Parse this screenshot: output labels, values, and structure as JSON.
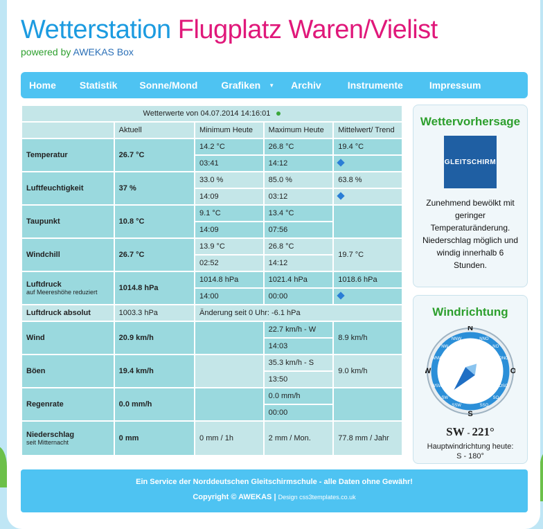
{
  "site": {
    "title_part1": "Wetterstation",
    "title_part2": "Flugplatz Waren/Vielist",
    "powered_prefix": "powered by",
    "powered_brand": "AWEKAS Box"
  },
  "nav": {
    "items": [
      "Home",
      "Statistik",
      "Sonne/Mond",
      "Grafiken",
      "Archiv",
      "Instrumente",
      "Impressum"
    ],
    "dropdown_arrow": "▼"
  },
  "table": {
    "header": "Wetterwerte von 04.07.2014 14:16:01",
    "columns": [
      "Aktuell",
      "Minimum Heute",
      "Maximum Heute",
      "Mittelwert/ Trend"
    ],
    "temperatur": {
      "label": "Temperatur",
      "value": "26.7 °C",
      "min": "14.2 °C",
      "min_time": "03:41",
      "max": "26.8 °C",
      "max_time": "14:12",
      "avg": "19.4 °C"
    },
    "feuchte": {
      "label": "Luftfeuchtigkeit",
      "value": "37 %",
      "min": "33.0 %",
      "min_time": "14:09",
      "max": "85.0 %",
      "max_time": "03:12",
      "avg": "63.8 %"
    },
    "taupunkt": {
      "label": "Taupunkt",
      "value": "10.8 °C",
      "min": "9.1 °C",
      "min_time": "14:09",
      "max": "13.4 °C",
      "max_time": "07:56"
    },
    "windchill": {
      "label": "Windchill",
      "value": "26.7 °C",
      "min": "13.9 °C",
      "min_time": "02:52",
      "max": "26.8 °C",
      "max_time": "14:12",
      "avg": "19.7 °C"
    },
    "luftdruck": {
      "label": "Luftdruck",
      "sublabel": "auf Meereshöhe reduziert",
      "value": "1014.8 hPa",
      "min": "1014.8 hPa",
      "min_time": "14:00",
      "max": "1021.4 hPa",
      "max_time": "00:00",
      "avg": "1018.6 hPa"
    },
    "luftdruck_abs": {
      "label": "Luftdruck absolut",
      "value": "1003.3 hPa",
      "change": "Änderung seit 0 Uhr: -6.1 hPa"
    },
    "wind": {
      "label": "Wind",
      "value": "20.9 km/h",
      "max": "22.7 km/h - W",
      "max_time": "14:03",
      "avg": "8.9 km/h"
    },
    "boeen": {
      "label": "Böen",
      "value": "19.4 km/h",
      "max": "35.3 km/h - S",
      "max_time": "13:50",
      "avg": "9.0 km/h"
    },
    "regenrate": {
      "label": "Regenrate",
      "value": "0.0 mm/h",
      "max": "0.0 mm/h",
      "max_time": "00:00"
    },
    "niederschlag": {
      "label": "Niederschlag",
      "sublabel": "seit Mitternacht",
      "value": "0 mm",
      "hour": "0 mm / 1h",
      "month": "2 mm / Mon.",
      "year": "77.8 mm / Jahr"
    }
  },
  "forecast": {
    "title": "Wettervorhersage",
    "logo_text": "GLEITSCHIRM",
    "text": "Zunehmend bewölkt mit geringer Temperaturänderung. Niederschlag möglich und windig innerhalb 6 Stunden."
  },
  "wind_dir": {
    "title": "Windrichtung",
    "direction": "SW",
    "degrees": "221°",
    "direction_deg": 221,
    "main_label": "Hauptwindrichtung heute:",
    "main_value": "S - 180°",
    "compass_labels": [
      "N",
      "NNO",
      "NO",
      "ONO",
      "O",
      "OSO",
      "SO",
      "SSO",
      "S",
      "SSW",
      "SW",
      "WSW",
      "W",
      "WNW",
      "NW",
      "NNW"
    ]
  },
  "footer": {
    "line1": "Ein Service der Norddeutschen Gleitschirmschule - alle Daten ohne Gewähr!",
    "copyright": "Copyright © AWEKAS",
    "separator": "|",
    "design": "Design css3templates.co.uk"
  },
  "colors": {
    "accent": "#4ec3f2",
    "title_blue": "#1c9be0",
    "title_pink": "#e0187a",
    "green": "#2d9f2d"
  }
}
